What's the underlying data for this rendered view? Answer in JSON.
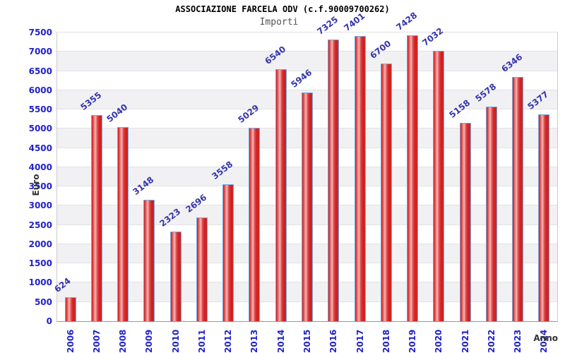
{
  "chart_data": {
    "type": "bar",
    "title": "ASSOCIAZIONE FARCELA ODV (c.f.90009700262)",
    "subtitle": "Importi",
    "xlabel": "Anno",
    "ylabel": "Euro",
    "categories": [
      "2006",
      "2007",
      "2008",
      "2009",
      "2010",
      "2011",
      "2012",
      "2013",
      "2014",
      "2015",
      "2016",
      "2017",
      "2018",
      "2019",
      "2020",
      "2021",
      "2022",
      "2023",
      "2024"
    ],
    "values": [
      624,
      5355,
      5040,
      3148,
      2323,
      2696,
      3558,
      5029,
      6540,
      5946,
      7325,
      7401,
      6700,
      7428,
      7032,
      5158,
      5578,
      6346,
      5377
    ],
    "y_ticks": [
      0,
      500,
      1000,
      1500,
      2000,
      2500,
      3000,
      3500,
      4000,
      4500,
      5000,
      5500,
      6000,
      6500,
      7000,
      7500
    ],
    "ylim": [
      0,
      7500
    ],
    "grid": "horizontal-bands-alternating",
    "legend": "none",
    "colors": {
      "bar_fill": "#d42a2a",
      "bar_highlight": "#f3b5b5",
      "bar_border": "#76a8dc",
      "tick_label": "#2222cc",
      "value_label": "#3434ad",
      "band_gray": "#f1f1f3",
      "grid_line": "#e2e2e4",
      "axis_title": "#333333",
      "title": "#000000",
      "subtitle": "#555555"
    }
  }
}
